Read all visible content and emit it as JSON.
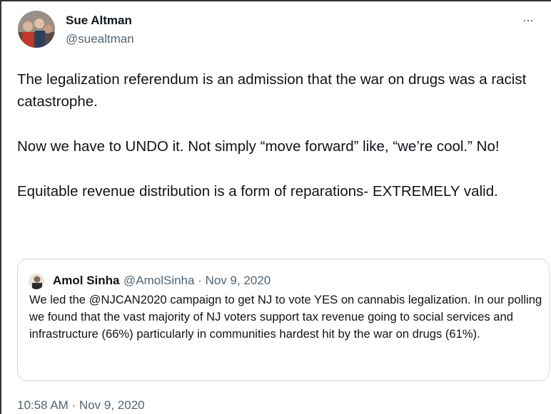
{
  "author": {
    "name": "Sue Altman",
    "handle": "@suealtman"
  },
  "menu": "···",
  "paragraphs": [
    "The legalization referendum is an admission that the war on drugs was a racist catastrophe.",
    "Now we have to UNDO it. Not simply “move forward” like, “we’re cool.” No!",
    "Equitable revenue distribution is a form of reparations- EXTREMELY valid."
  ],
  "quote": {
    "name": "Amol Sinha",
    "handle_date": "@AmolSinha · Nov 9, 2020",
    "text": "We led the @NJCAN2020 campaign to get NJ to vote YES on cannabis legalization. In our polling we found that the vast majority of NJ voters support tax revenue going to social services and infrastructure (66%) particularly in communities hardest hit by the war on drugs (61%)."
  },
  "timestamp": "10:58 AM · Nov 9, 2020"
}
